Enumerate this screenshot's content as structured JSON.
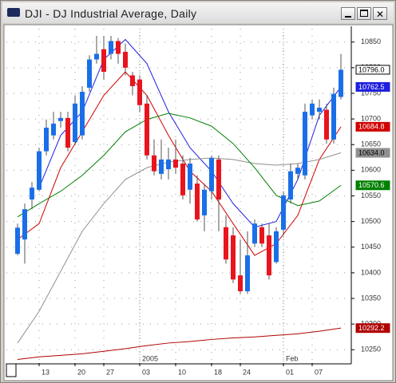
{
  "window": {
    "title": "DJI - DJ Industrial Average, Daily"
  },
  "chart_data": {
    "type": "candlestick",
    "categories": [
      null,
      null,
      null,
      "13",
      null,
      null,
      null,
      null,
      "20",
      null,
      null,
      null,
      "27",
      null,
      null,
      null,
      null,
      "03",
      null,
      null,
      null,
      null,
      "10",
      null,
      null,
      null,
      null,
      "18",
      null,
      null,
      null,
      "24",
      null,
      null,
      null,
      null,
      null,
      "01",
      null,
      null,
      null,
      "07",
      null,
      null,
      null,
      null
    ],
    "annotations": [
      {
        "category": 17,
        "text": "2005"
      },
      {
        "category": 37,
        "text": "Feb"
      }
    ],
    "candles": {
      "open": [
        10437,
        10465,
        10543,
        10562,
        10637,
        10668,
        10696,
        10702,
        10655,
        10668,
        10761,
        10816,
        10836,
        10827,
        10852,
        10831,
        10785,
        10777,
        10730,
        10629,
        10593,
        10602,
        10621,
        10613,
        10562,
        10574,
        10512,
        10559,
        10621,
        10489,
        10473,
        10395,
        10364,
        10457,
        10489,
        10473,
        10421,
        10484,
        10543,
        10593,
        10590,
        10707,
        10714,
        10718,
        10660,
        10743
      ],
      "high": [
        10496,
        10535,
        10577,
        10644,
        10699,
        10714,
        10714,
        10714,
        10746,
        10764,
        10824,
        10862,
        10862,
        10862,
        10858,
        10847,
        10792,
        10785,
        10746,
        10660,
        10660,
        10644,
        10660,
        10629,
        10624,
        10590,
        10574,
        10629,
        10629,
        10512,
        10489,
        10465,
        10481,
        10504,
        10496,
        10496,
        10489,
        10559,
        10613,
        10613,
        10730,
        10738,
        10738,
        10730,
        10761,
        10827
      ],
      "low": [
        10434,
        10418,
        10524,
        10559,
        10629,
        10660,
        10683,
        10637,
        10649,
        10660,
        10753,
        10808,
        10777,
        10816,
        10808,
        10785,
        10746,
        10714,
        10621,
        10590,
        10582,
        10582,
        10593,
        10543,
        10535,
        10500,
        10481,
        10543,
        10481,
        10418,
        10380,
        10359,
        10359,
        10450,
        10450,
        10387,
        10418,
        10473,
        10535,
        10582,
        10582,
        10699,
        10699,
        10652,
        10652,
        10738
      ],
      "close": [
        10488,
        10524,
        10566,
        10637,
        10683,
        10691,
        10702,
        10644,
        10730,
        10753,
        10816,
        10827,
        10792,
        10852,
        10827,
        10800,
        10764,
        10727,
        10629,
        10598,
        10621,
        10621,
        10605,
        10551,
        10613,
        10504,
        10562,
        10624,
        10543,
        10426,
        10387,
        10364,
        10434,
        10496,
        10457,
        10395,
        10481,
        10551,
        10598,
        10605,
        10714,
        10730,
        10722,
        10660,
        10749,
        10796
      ],
      "up_color": "#1a6fe8",
      "down_color": "#e8141e",
      "last_label": "10796.0"
    },
    "series": [
      {
        "color": "#1f1fe0",
        "x": [
          3,
          6,
          9,
          12,
          15,
          18,
          21,
          24,
          27,
          30,
          33,
          36,
          39,
          42,
          45
        ],
        "values": [
          10566,
          10668,
          10714,
          10816,
          10855,
          10808,
          10714,
          10644,
          10598,
          10535,
          10489,
          10500,
          10582,
          10707,
          10762.5
        ],
        "last_label": "10762.5"
      },
      {
        "color": "#d00000",
        "x": [
          0,
          3,
          6,
          9,
          12,
          15,
          18,
          21,
          24,
          27,
          30,
          33,
          36,
          39,
          42,
          45
        ],
        "values": [
          10465,
          10496,
          10605,
          10675,
          10746,
          10792,
          10746,
          10668,
          10598,
          10559,
          10496,
          10434,
          10457,
          10512,
          10621,
          10684.8
        ],
        "last_label": "10684.8"
      },
      {
        "color": "#909090",
        "x": [
          0,
          3,
          6,
          9,
          12,
          15,
          18,
          21,
          24,
          27,
          30,
          33,
          36,
          39,
          42,
          45
        ],
        "values": [
          10263,
          10325,
          10403,
          10481,
          10535,
          10582,
          10605,
          10616,
          10621,
          10624,
          10621,
          10613,
          10610,
          10613,
          10621,
          10634
        ],
        "last_label": "10634.0"
      },
      {
        "color": "#008000",
        "x": [
          0,
          3,
          6,
          9,
          12,
          15,
          18,
          21,
          24,
          27,
          30,
          33,
          36,
          39,
          42,
          45
        ],
        "values": [
          10509,
          10535,
          10559,
          10590,
          10629,
          10675,
          10699,
          10711,
          10702,
          10686,
          10652,
          10605,
          10551,
          10531,
          10540,
          10570.6
        ],
        "last_label": "10570.6"
      },
      {
        "color": "#b00000",
        "x": [
          0,
          3,
          6,
          9,
          12,
          15,
          18,
          21,
          24,
          27,
          30,
          33,
          36,
          39,
          42,
          45
        ],
        "values": [
          10231,
          10236,
          10239,
          10242,
          10247,
          10252,
          10258,
          10263,
          10266,
          10270,
          10273,
          10275,
          10278,
          10281,
          10286,
          10292.2
        ],
        "last_label": "10292.2"
      }
    ],
    "ylim": [
      10224,
      10876
    ],
    "yticks": [
      10250,
      10300,
      10350,
      10400,
      10450,
      10500,
      10550,
      10600,
      10650,
      10700,
      10750,
      10800,
      10850
    ],
    "grid": true
  }
}
